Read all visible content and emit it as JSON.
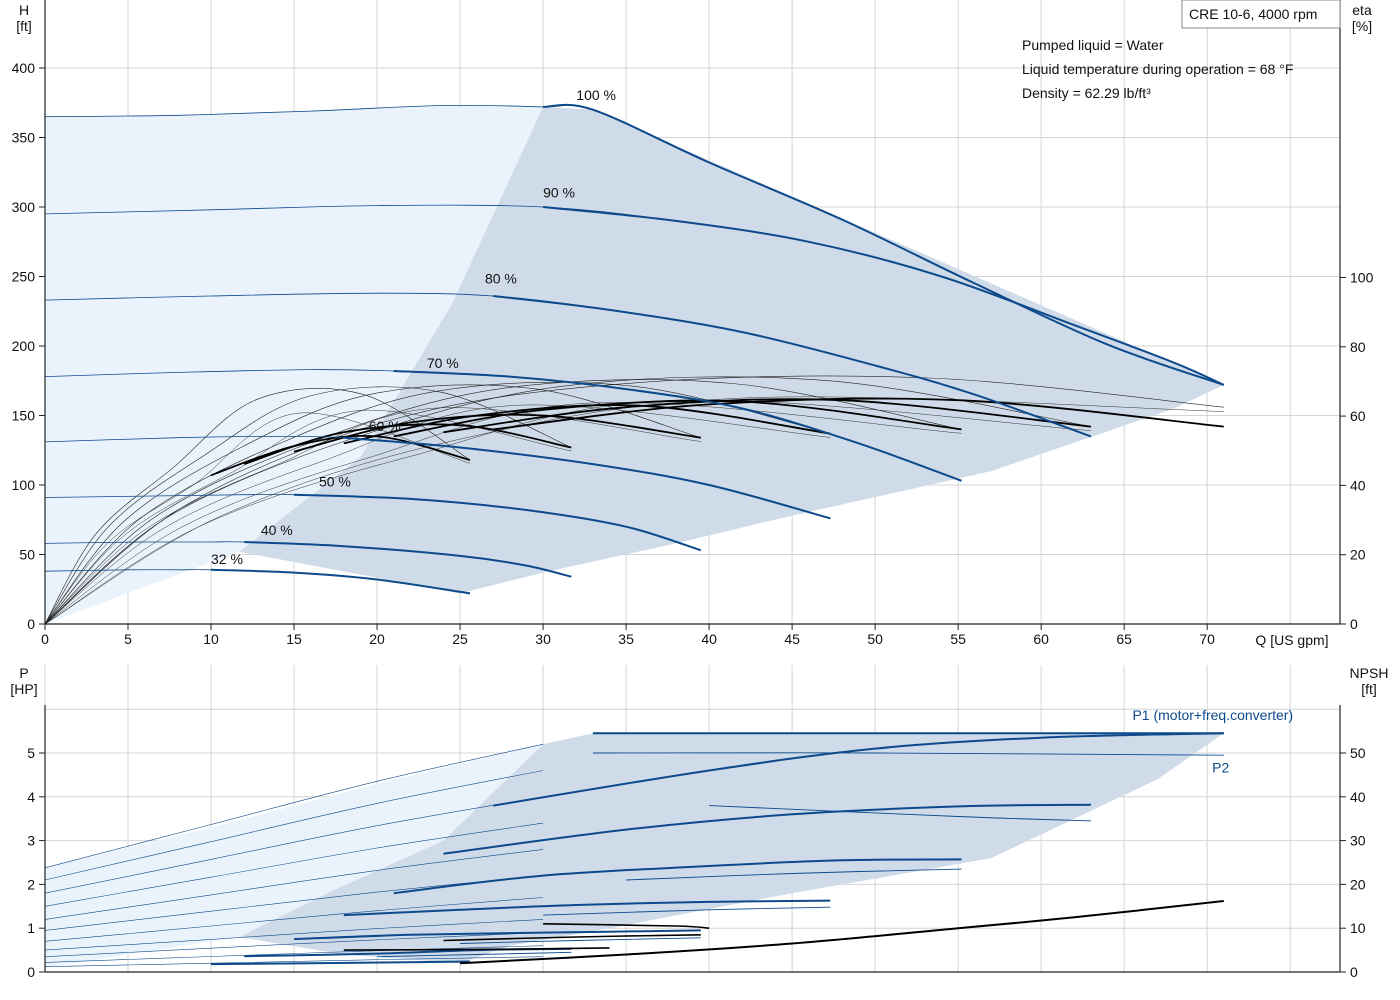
{
  "chart_data": [
    {
      "type": "line",
      "title": "CRE 10-6, 4000 rpm",
      "notes": [
        "Pumped liquid = Water",
        "Liquid temperature during operation = 68 °F",
        "Density = 62.29 lb/ft³"
      ],
      "xlabel": "Q [US gpm]",
      "ylabel_left": [
        "H",
        "[ft]"
      ],
      "ylabel_right": [
        "eta",
        "[%]"
      ],
      "xlim": [
        0,
        78
      ],
      "ylim_left": [
        0,
        400
      ],
      "ylim_right": [
        0,
        130
      ],
      "x_ticks": [
        0,
        5,
        10,
        15,
        20,
        25,
        30,
        35,
        40,
        45,
        50,
        55,
        60,
        65,
        70
      ],
      "y_ticks_left": [
        0,
        50,
        100,
        150,
        200,
        250,
        300,
        350,
        400
      ],
      "y_ticks_right": [
        0,
        20,
        40,
        60,
        80,
        100
      ],
      "grid": true,
      "colors": {
        "curve": "#0d4a8c",
        "region": "#cfdbe8",
        "region_light": "#eaf3fb",
        "eta": "#000000"
      },
      "operating_region": {
        "upper": [
          [
            30,
            372
          ],
          [
            33,
            370
          ],
          [
            71,
            172
          ]
        ],
        "lower": [
          [
            71,
            172
          ],
          [
            68,
            155
          ],
          [
            57,
            110
          ],
          [
            45,
            78
          ],
          [
            38,
            58
          ],
          [
            30,
            37
          ],
          [
            25,
            22
          ]
        ],
        "min_flow_edge": [
          [
            25,
            22
          ],
          [
            11.7,
            52
          ],
          [
            19,
            120
          ],
          [
            24.5,
            230
          ],
          [
            30,
            372
          ]
        ]
      },
      "light_region": {
        "upper": [
          [
            0,
            365
          ],
          [
            8,
            366
          ],
          [
            16,
            369
          ],
          [
            24,
            373
          ],
          [
            30,
            372
          ]
        ],
        "left_edge": [
          [
            0,
            365
          ],
          [
            0,
            0
          ]
        ]
      },
      "series": [
        {
          "name": "100 %",
          "label_x": 32,
          "label_y": 377,
          "points": [
            [
              0,
              365
            ],
            [
              8,
              366
            ],
            [
              16,
              369
            ],
            [
              24,
              373
            ],
            [
              30,
              372
            ],
            [
              33,
              370
            ],
            [
              40,
              332
            ],
            [
              48,
              291
            ],
            [
              56,
              245
            ],
            [
              64,
              201
            ],
            [
              71,
              172
            ]
          ]
        },
        {
          "name": "90 %",
          "label_x": 30,
          "label_y": 307,
          "points": [
            [
              0,
              295
            ],
            [
              10,
              298
            ],
            [
              20,
              301
            ],
            [
              30,
              300
            ],
            [
              38,
              290
            ],
            [
              46,
              275
            ],
            [
              54,
              250
            ],
            [
              62,
              215
            ],
            [
              68,
              188
            ],
            [
              71,
              172
            ]
          ]
        },
        {
          "name": "80 %",
          "label_x": 26.5,
          "label_y": 245,
          "points": [
            [
              0,
              233
            ],
            [
              10,
              236
            ],
            [
              20,
              238
            ],
            [
              27,
              236
            ],
            [
              34,
              226
            ],
            [
              42,
              210
            ],
            [
              50,
              186
            ],
            [
              56,
              165
            ],
            [
              63,
              135
            ]
          ]
        },
        {
          "name": "70 %",
          "label_x": 23,
          "label_y": 184,
          "points": [
            [
              0,
              178
            ],
            [
              8,
              181
            ],
            [
              16,
              183
            ],
            [
              21,
              182
            ],
            [
              28,
              178
            ],
            [
              35,
              169
            ],
            [
              42,
              155
            ],
            [
              49,
              130
            ],
            [
              55.2,
              103
            ]
          ]
        },
        {
          "name": "60 %",
          "label_x": 19.5,
          "label_y": 139,
          "points": [
            [
              0,
              131
            ],
            [
              8,
              134
            ],
            [
              14,
              135
            ],
            [
              18,
              134
            ],
            [
              25,
              127
            ],
            [
              33,
              115
            ],
            [
              40,
              100
            ],
            [
              47.3,
              76
            ]
          ]
        },
        {
          "name": "50 %",
          "label_x": 16.5,
          "label_y": 99,
          "points": [
            [
              0,
              91
            ],
            [
              6,
              92
            ],
            [
              12,
              93
            ],
            [
              15,
              93
            ],
            [
              22,
              90
            ],
            [
              29,
              82
            ],
            [
              35,
              70
            ],
            [
              39.5,
              53
            ]
          ]
        },
        {
          "name": "40 %",
          "label_x": 13,
          "label_y": 64,
          "points": [
            [
              0,
              58
            ],
            [
              6,
              59
            ],
            [
              10,
              59
            ],
            [
              12,
              59
            ],
            [
              18,
              56
            ],
            [
              25,
              49
            ],
            [
              29,
              42
            ],
            [
              31.7,
              34
            ]
          ]
        },
        {
          "name": "32 %",
          "label_x": 10,
          "label_y": 43,
          "points": [
            [
              0,
              38
            ],
            [
              5,
              39
            ],
            [
              8,
              39
            ],
            [
              10,
              39
            ],
            [
              15,
              37
            ],
            [
              20,
              32
            ],
            [
              25.6,
              22
            ]
          ]
        }
      ]
    },
    {
      "type": "line",
      "xlabel": "",
      "ylabel_left": [
        "P",
        "[HP]"
      ],
      "ylabel_right": [
        "NPSH",
        "[ft]"
      ],
      "xlim": [
        0,
        78
      ],
      "ylim_left": [
        0,
        6
      ],
      "ylim_right": [
        0,
        60
      ],
      "y_ticks_left": [
        0,
        1,
        2,
        3,
        4,
        5
      ],
      "y_ticks_right": [
        0,
        10,
        20,
        30,
        40,
        50
      ],
      "grid": true,
      "legend": [
        {
          "name": "P1 (motor+freq.converter)",
          "label_x": 65.5,
          "label_y": 5.75
        },
        {
          "name": "P2",
          "label_x": 70.3,
          "label_y": 4.55
        }
      ],
      "operating_region": {
        "upper": [
          [
            30,
            5.2
          ],
          [
            33,
            5.45
          ],
          [
            71,
            5.45
          ]
        ],
        "lower": [
          [
            71,
            5.45
          ],
          [
            67,
            4.4
          ],
          [
            57,
            2.6
          ],
          [
            45,
            1.8
          ],
          [
            34,
            1.0
          ],
          [
            28,
            0.6
          ],
          [
            25,
            0.2
          ]
        ],
        "min_flow_edge": [
          [
            25,
            0.2
          ],
          [
            18,
            0.4
          ],
          [
            11.7,
            0.8
          ],
          [
            17,
            1.8
          ],
          [
            24,
            3.0
          ],
          [
            30,
            5.2
          ]
        ]
      },
      "light_region": {
        "upper": [
          [
            0,
            2.38
          ],
          [
            10,
            3.3
          ],
          [
            20,
            4.3
          ],
          [
            30,
            5.2
          ]
        ]
      },
      "p1_series": [
        {
          "name": "100 %",
          "points": [
            [
              33,
              5.45
            ],
            [
              71,
              5.45
            ]
          ]
        },
        {
          "name": "90 %",
          "points": [
            [
              27,
              3.8
            ],
            [
              40,
              4.6
            ],
            [
              50,
              5.1
            ],
            [
              60,
              5.35
            ],
            [
              71,
              5.45
            ]
          ]
        },
        {
          "name": "80 %",
          "points": [
            [
              24,
              2.7
            ],
            [
              35,
              3.25
            ],
            [
              45,
              3.6
            ],
            [
              55,
              3.78
            ],
            [
              63,
              3.82
            ]
          ]
        },
        {
          "name": "70 %",
          "points": [
            [
              21,
              1.8
            ],
            [
              30,
              2.2
            ],
            [
              40,
              2.42
            ],
            [
              48,
              2.55
            ],
            [
              55.2,
              2.57
            ]
          ]
        },
        {
          "name": "60 %",
          "points": [
            [
              18,
              1.3
            ],
            [
              25,
              1.42
            ],
            [
              32,
              1.53
            ],
            [
              40,
              1.6
            ],
            [
              47.3,
              1.63
            ]
          ]
        },
        {
          "name": "50 %",
          "points": [
            [
              15,
              0.75
            ],
            [
              22,
              0.85
            ],
            [
              30,
              0.9
            ],
            [
              39.5,
              0.95
            ]
          ]
        },
        {
          "name": "40 %",
          "points": [
            [
              12,
              0.36
            ],
            [
              20,
              0.42
            ],
            [
              26,
              0.5
            ],
            [
              31.7,
              0.53
            ]
          ]
        },
        {
          "name": "32 %",
          "points": [
            [
              10,
              0.18
            ],
            [
              16,
              0.2
            ],
            [
              21,
              0.22
            ],
            [
              25.6,
              0.24
            ]
          ]
        }
      ],
      "p2_series": [
        {
          "name": "100 %",
          "points": [
            [
              33,
              5.0
            ],
            [
              50,
              5.0
            ],
            [
              71,
              4.95
            ]
          ]
        },
        {
          "name": "80 %",
          "points": [
            [
              40,
              3.8
            ],
            [
              55,
              3.55
            ],
            [
              63,
              3.45
            ]
          ]
        },
        {
          "name": "70 %",
          "points": [
            [
              35,
              2.1
            ],
            [
              45,
              2.25
            ],
            [
              55.2,
              2.35
            ]
          ]
        },
        {
          "name": "60 %",
          "points": [
            [
              30,
              1.3
            ],
            [
              40,
              1.42
            ],
            [
              47.3,
              1.48
            ]
          ]
        },
        {
          "name": "50 %",
          "points": [
            [
              25,
              0.65
            ],
            [
              32,
              0.72
            ],
            [
              39.5,
              0.78
            ]
          ]
        },
        {
          "name": "40 %",
          "points": [
            [
              20,
              0.35
            ],
            [
              26,
              0.4
            ],
            [
              31.7,
              0.45
            ]
          ]
        }
      ],
      "npsh_curve": {
        "name": "NPSH",
        "points": [
          [
            25,
            0.2
          ],
          [
            35,
            0.4
          ],
          [
            45,
            0.65
          ],
          [
            55,
            1.0
          ],
          [
            62,
            1.25
          ],
          [
            71,
            1.62
          ]
        ]
      }
    }
  ]
}
